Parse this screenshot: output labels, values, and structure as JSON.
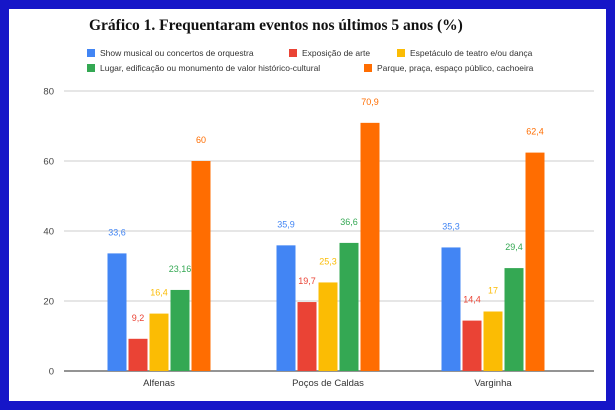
{
  "chart_data": {
    "type": "bar",
    "title": "Gráfico 1. Frequentaram eventos nos últimos 5 anos (%)",
    "xlabel": "",
    "ylabel": "",
    "categories": [
      "Alfenas",
      "Poços de Caldas",
      "Varginha"
    ],
    "series": [
      {
        "name": "Show musical ou concertos de orquestra",
        "color": "#4285f4",
        "values": [
          33.6,
          35.9,
          35.3
        ],
        "labels": [
          "33,6",
          "35,9",
          "35,3"
        ]
      },
      {
        "name": "Exposição de arte",
        "color": "#ea4335",
        "values": [
          9.2,
          19.7,
          14.4
        ],
        "labels": [
          "9,2",
          "19,7",
          "14,4"
        ]
      },
      {
        "name": "Espetáculo de teatro e/ou dança",
        "color": "#fbbc04",
        "values": [
          16.4,
          25.3,
          17
        ],
        "labels": [
          "16,4",
          "25,3",
          "17"
        ]
      },
      {
        "name": "Lugar, edificação ou monumento de valor histórico-cultural",
        "color": "#34a853",
        "values": [
          23.16,
          36.6,
          29.4
        ],
        "labels": [
          "23,16",
          "36,6",
          "29,4"
        ]
      },
      {
        "name": "Parque, praça, espaço público, cachoeira",
        "color": "#ff6d01",
        "values": [
          60,
          70.9,
          62.4
        ],
        "labels": [
          "60",
          "70,9",
          "62,4"
        ]
      }
    ],
    "ylim": [
      0,
      80
    ],
    "yticks": [
      0,
      20,
      40,
      60,
      80
    ],
    "grid": true,
    "legend": "top"
  }
}
